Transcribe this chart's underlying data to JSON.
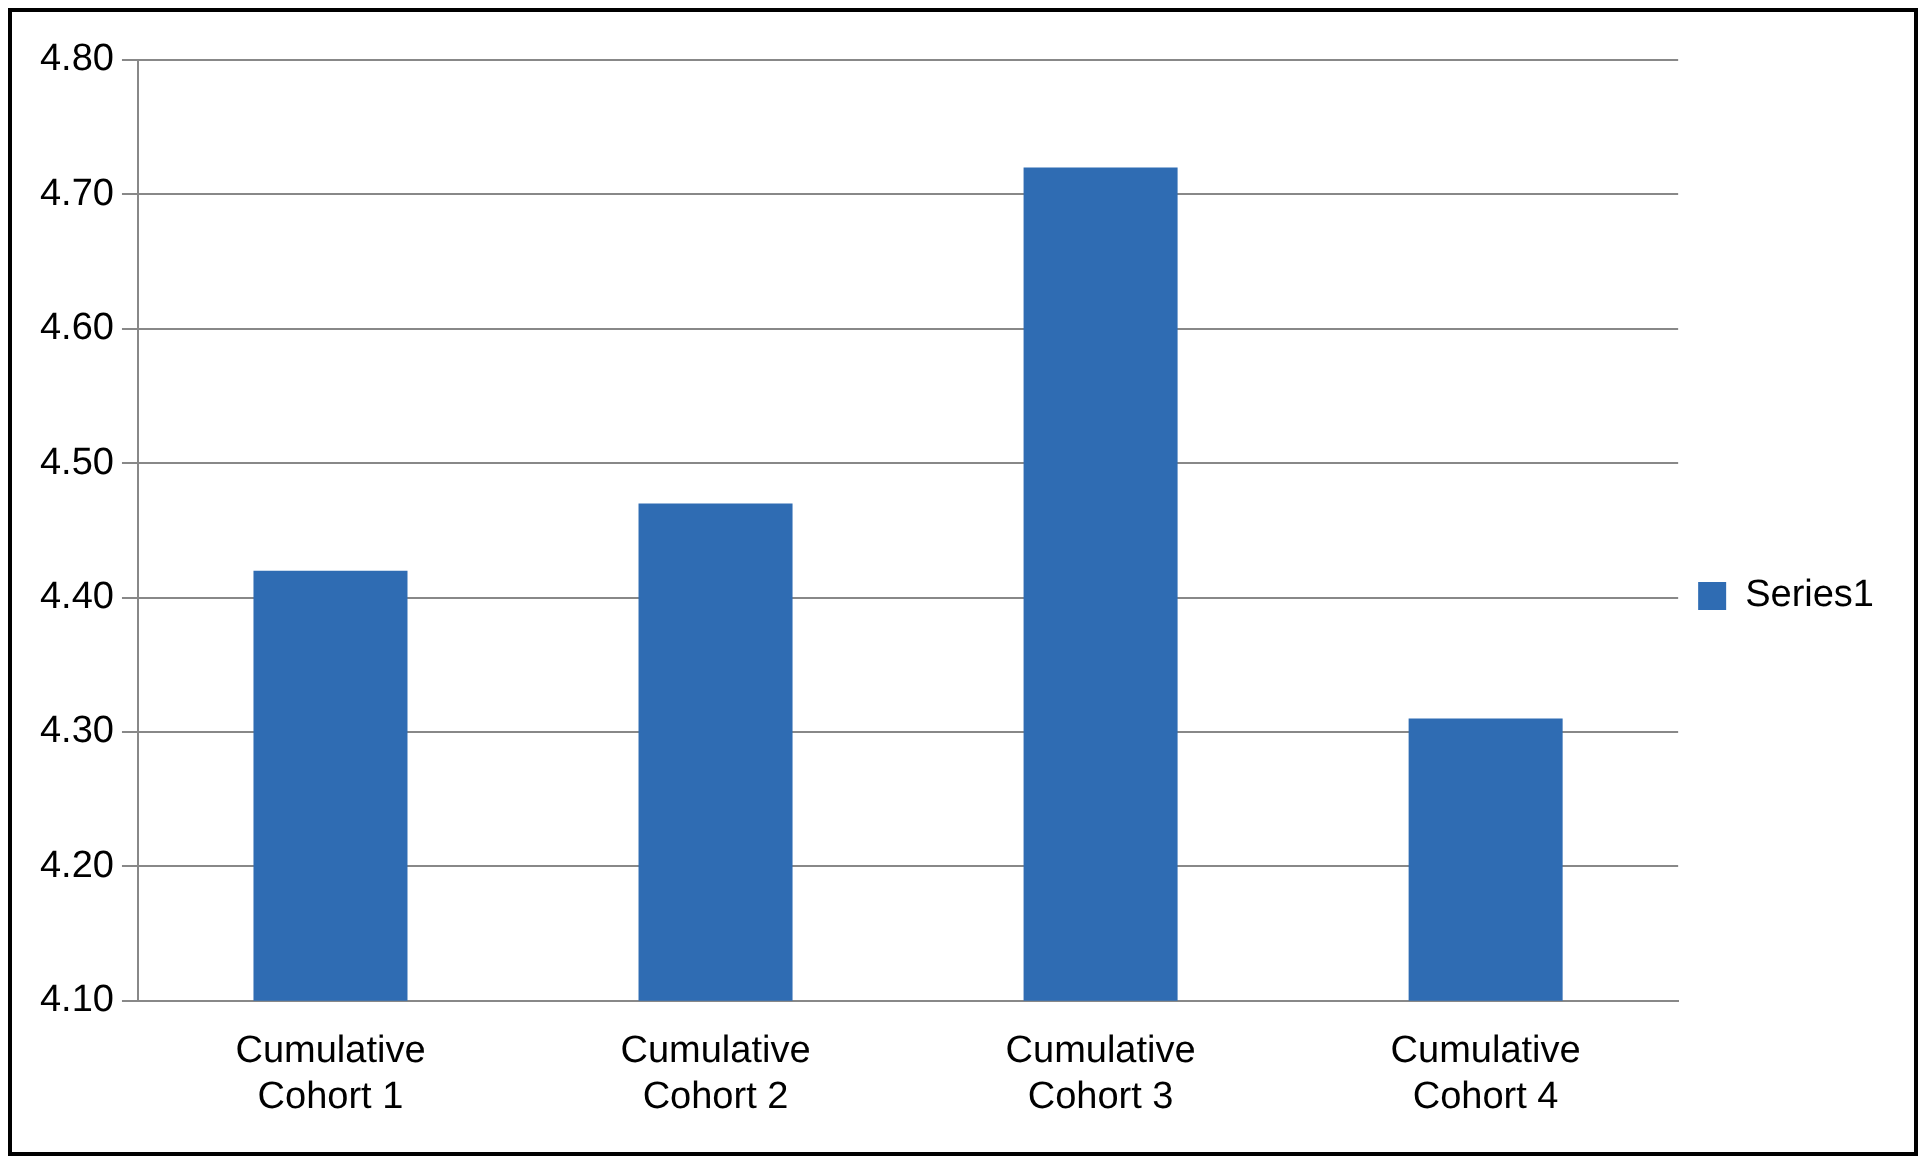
{
  "chart_data": {
    "type": "bar",
    "categories": [
      "Cumulative Cohort 1",
      "Cumulative Cohort 2",
      "Cumulative Cohort 3",
      "Cumulative Cohort 4"
    ],
    "series": [
      {
        "name": "Series1",
        "color": "#2f6cb3",
        "values": [
          4.42,
          4.47,
          4.72,
          4.31
        ]
      }
    ],
    "ylim": [
      4.1,
      4.8
    ],
    "yticks": [
      {
        "value": 4.1,
        "label": "4.10"
      },
      {
        "value": 4.2,
        "label": "4.20"
      },
      {
        "value": 4.3,
        "label": "4.30"
      },
      {
        "value": 4.4,
        "label": "4.40"
      },
      {
        "value": 4.5,
        "label": "4.50"
      },
      {
        "value": 4.6,
        "label": "4.60"
      },
      {
        "value": 4.7,
        "label": "4.70"
      },
      {
        "value": 4.8,
        "label": "4.80"
      }
    ],
    "grid": "y",
    "legend": "right"
  }
}
